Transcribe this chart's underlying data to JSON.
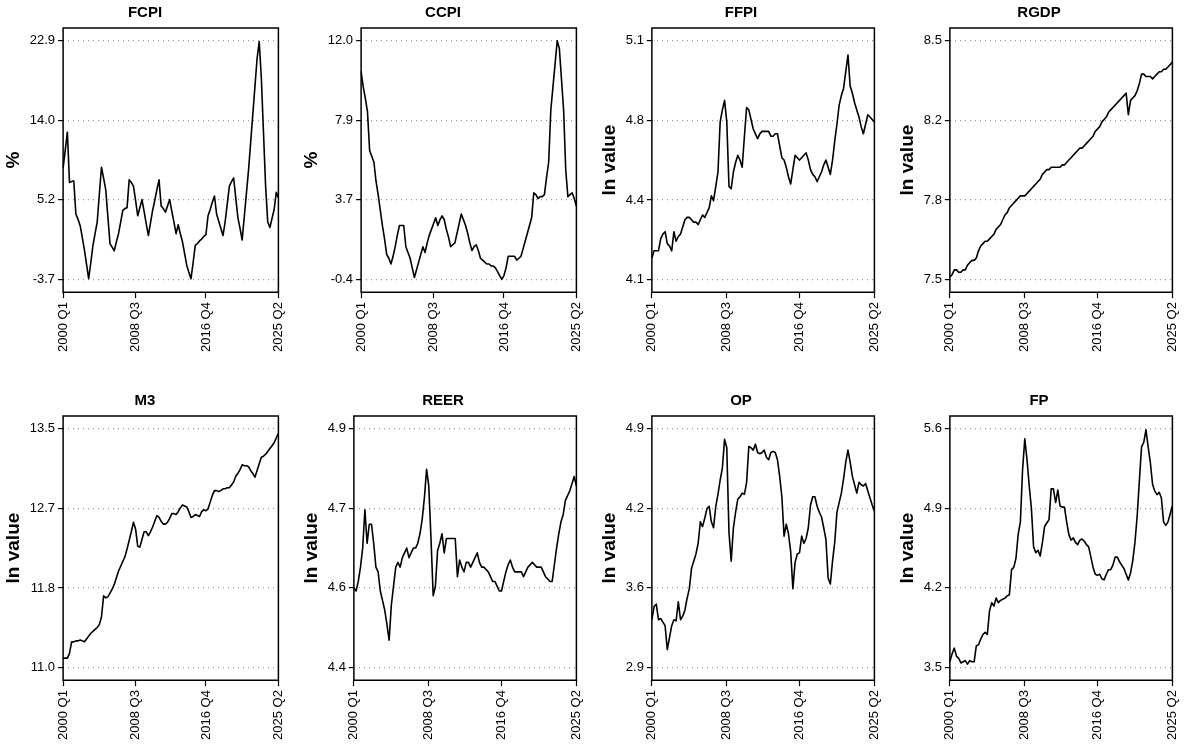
{
  "chart_data": [
    {
      "type": "line",
      "title": "FCPI",
      "ylabel": "%",
      "grid": "y",
      "ylim": [
        -5.1,
        24.3
      ],
      "categories": [
        "2000 Q1",
        null,
        null,
        null,
        null,
        null,
        null,
        null,
        null,
        null,
        null,
        null,
        null,
        null,
        null,
        null,
        null,
        null,
        null,
        null,
        null,
        null,
        null,
        null,
        null,
        null,
        null,
        null,
        null,
        null,
        null,
        null,
        null,
        null,
        "2008 Q3",
        null,
        null,
        null,
        null,
        null,
        null,
        null,
        null,
        null,
        null,
        null,
        null,
        null,
        null,
        null,
        null,
        null,
        null,
        null,
        null,
        null,
        null,
        null,
        null,
        null,
        null,
        null,
        null,
        null,
        null,
        null,
        null,
        "2016 Q4",
        null,
        null,
        null,
        null,
        null,
        null,
        null,
        null,
        null,
        null,
        null,
        null,
        null,
        null,
        null,
        null,
        null,
        null,
        null,
        null,
        null,
        null,
        null,
        null,
        null,
        null,
        null,
        null,
        null,
        null,
        null,
        null,
        null,
        "2025 Q2"
      ],
      "yticks": [
        -3.7,
        {
          "value": 5.167,
          "label": "5.2"
        },
        {
          "value": 14.033,
          "label": "14.0"
        },
        22.9
      ],
      "series": [
        {
          "color": "#000000",
          "values": [
            8.7,
            10.7,
            12.7,
            7.1,
            7.2,
            7.3,
            3.6,
            3.0,
            2.3,
            1.0,
            -0.4,
            -2.0,
            -3.6,
            -1.8,
            0.1,
            1.4,
            2.7,
            5.8,
            8.8,
            7.6,
            6.3,
            3.3,
            0.3,
            -0.1,
            -0.5,
            0.5,
            1.4,
            2.7,
            4.0,
            4.2,
            4.3,
            7.4,
            7.1,
            6.7,
            5.1,
            3.4,
            4.3,
            5.2,
            3.9,
            2.5,
            1.2,
            2.6,
            4.0,
            5.1,
            6.3,
            7.4,
            4.5,
            4.2,
            3.8,
            4.5,
            5.2,
            3.9,
            2.7,
            1.4,
            2.4,
            1.4,
            0.5,
            -0.8,
            -2.1,
            -2.9,
            -3.6,
            -1.8,
            0.1,
            0.3,
            0.6,
            0.8,
            1.1,
            1.3,
            3.4,
            4.1,
            4.9,
            5.6,
            3.6,
            2.8,
            2.0,
            1.2,
            2.7,
            4.7,
            6.7,
            7.2,
            7.6,
            5.4,
            3.2,
            2.0,
            0.7,
            3.3,
            5.9,
            8.5,
            11.6,
            14.7,
            17.8,
            20.9,
            22.8,
            18.7,
            12.7,
            6.7,
            2.7,
            2.1,
            3.1,
            4.1,
            6.0,
            5.4
          ]
        }
      ]
    },
    {
      "type": "line",
      "title": "CCPI",
      "ylabel": "%",
      "grid": "y",
      "ylim": [
        -1.06,
        12.66
      ],
      "categories": [
        "2000 Q1",
        null,
        null,
        null,
        null,
        null,
        null,
        null,
        null,
        null,
        null,
        null,
        null,
        null,
        null,
        null,
        null,
        null,
        null,
        null,
        null,
        null,
        null,
        null,
        null,
        null,
        null,
        null,
        null,
        null,
        null,
        null,
        null,
        null,
        "2008 Q3",
        null,
        null,
        null,
        null,
        null,
        null,
        null,
        null,
        null,
        null,
        null,
        null,
        null,
        null,
        null,
        null,
        null,
        null,
        null,
        null,
        null,
        null,
        null,
        null,
        null,
        null,
        null,
        null,
        null,
        null,
        null,
        null,
        "2016 Q4",
        null,
        null,
        null,
        null,
        null,
        null,
        null,
        null,
        null,
        null,
        null,
        null,
        null,
        null,
        null,
        null,
        null,
        null,
        null,
        null,
        null,
        null,
        null,
        null,
        null,
        null,
        null,
        null,
        null,
        null,
        null,
        null,
        null,
        "2025 Q2"
      ],
      "yticks": [
        -0.4,
        {
          "value": 3.733,
          "label": "3.7"
        },
        {
          "value": 7.867,
          "label": "7.9"
        },
        {
          "value": 12,
          "label": "12.0"
        }
      ],
      "series": [
        {
          "color": "#000000",
          "values": [
            10.4,
            9.6,
            9.0,
            8.3,
            6.3,
            6.0,
            5.7,
            4.7,
            4.0,
            3.2,
            2.4,
            1.7,
            0.9,
            0.7,
            0.4,
            0.8,
            1.3,
            1.9,
            2.4,
            2.4,
            2.4,
            1.3,
            1.0,
            0.7,
            0.2,
            -0.3,
            0.1,
            0.5,
            0.9,
            1.3,
            1.0,
            1.5,
            1.9,
            2.2,
            2.5,
            2.8,
            2.4,
            2.7,
            2.9,
            2.7,
            2.2,
            1.8,
            1.3,
            1.4,
            1.5,
            2.0,
            2.5,
            3.0,
            2.7,
            2.4,
            2.0,
            1.5,
            1.1,
            1.3,
            1.4,
            1.1,
            0.7,
            0.6,
            0.5,
            0.4,
            0.4,
            0.3,
            0.3,
            0.2,
            0.0,
            -0.2,
            -0.4,
            -0.2,
            0.2,
            0.8,
            0.8,
            0.8,
            0.8,
            0.6,
            0.7,
            0.8,
            1.2,
            1.6,
            2.0,
            2.4,
            2.8,
            4.1,
            4.0,
            3.8,
            3.9,
            3.9,
            4.0,
            4.9,
            5.7,
            8.4,
            9.6,
            10.8,
            12.0,
            11.6,
            10.0,
            8.4,
            5.3,
            3.9,
            4.0,
            4.1,
            3.8,
            3.4
          ]
        }
      ]
    },
    {
      "type": "line",
      "title": "FFPI",
      "ylabel": "ln value",
      "grid": "y",
      "ylim": [
        4.047,
        5.153
      ],
      "categories": [
        "2000 Q1",
        null,
        null,
        null,
        null,
        null,
        null,
        null,
        null,
        null,
        null,
        null,
        null,
        null,
        null,
        null,
        null,
        null,
        null,
        null,
        null,
        null,
        null,
        null,
        null,
        null,
        null,
        null,
        null,
        null,
        null,
        null,
        null,
        null,
        "2008 Q3",
        null,
        null,
        null,
        null,
        null,
        null,
        null,
        null,
        null,
        null,
        null,
        null,
        null,
        null,
        null,
        null,
        null,
        null,
        null,
        null,
        null,
        null,
        null,
        null,
        null,
        null,
        null,
        null,
        null,
        null,
        null,
        null,
        "2016 Q4",
        null,
        null,
        null,
        null,
        null,
        null,
        null,
        null,
        null,
        null,
        null,
        null,
        null,
        null,
        null,
        null,
        null,
        null,
        null,
        null,
        null,
        null,
        null,
        null,
        null,
        null,
        null,
        null,
        null,
        null,
        null,
        null,
        null,
        "2025 Q2"
      ],
      "yticks": [
        4.1,
        {
          "value": 4.433,
          "label": "4.4"
        },
        {
          "value": 4.767,
          "label": "4.8"
        },
        5.1
      ],
      "series": [
        {
          "color": "#000000",
          "values": [
            4.19,
            4.22,
            4.22,
            4.22,
            4.27,
            4.29,
            4.3,
            4.25,
            4.24,
            4.22,
            4.3,
            4.26,
            4.28,
            4.29,
            4.32,
            4.35,
            4.36,
            4.36,
            4.35,
            4.34,
            4.34,
            4.33,
            4.35,
            4.37,
            4.36,
            4.38,
            4.4,
            4.45,
            4.43,
            4.49,
            4.55,
            4.76,
            4.81,
            4.85,
            4.76,
            4.49,
            4.48,
            4.55,
            4.59,
            4.62,
            4.6,
            4.57,
            4.7,
            4.82,
            4.81,
            4.77,
            4.73,
            4.71,
            4.69,
            4.71,
            4.72,
            4.72,
            4.72,
            4.72,
            4.7,
            4.7,
            4.71,
            4.71,
            4.66,
            4.61,
            4.6,
            4.57,
            4.53,
            4.5,
            4.56,
            4.62,
            4.61,
            4.6,
            4.61,
            4.62,
            4.63,
            4.6,
            4.56,
            4.54,
            4.53,
            4.51,
            4.53,
            4.55,
            4.58,
            4.6,
            4.57,
            4.54,
            4.6,
            4.68,
            4.75,
            4.83,
            4.87,
            4.9,
            4.97,
            5.04,
            4.91,
            4.88,
            4.84,
            4.81,
            4.78,
            4.74,
            4.71,
            4.75,
            4.79,
            4.78,
            4.77,
            4.76
          ]
        }
      ]
    },
    {
      "type": "line",
      "title": "RGDP",
      "ylabel": "ln value",
      "grid": "y",
      "ylim": [
        7.447,
        8.553
      ],
      "categories": [
        "2000 Q1",
        null,
        null,
        null,
        null,
        null,
        null,
        null,
        null,
        null,
        null,
        null,
        null,
        null,
        null,
        null,
        null,
        null,
        null,
        null,
        null,
        null,
        null,
        null,
        null,
        null,
        null,
        null,
        null,
        null,
        null,
        null,
        null,
        null,
        "2008 Q3",
        null,
        null,
        null,
        null,
        null,
        null,
        null,
        null,
        null,
        null,
        null,
        null,
        null,
        null,
        null,
        null,
        null,
        null,
        null,
        null,
        null,
        null,
        null,
        null,
        null,
        null,
        null,
        null,
        null,
        null,
        null,
        null,
        "2016 Q4",
        null,
        null,
        null,
        null,
        null,
        null,
        null,
        null,
        null,
        null,
        null,
        null,
        null,
        null,
        null,
        null,
        null,
        null,
        null,
        null,
        null,
        null,
        null,
        null,
        null,
        null,
        null,
        null,
        null,
        null,
        null,
        null,
        null,
        "2025 Q2"
      ],
      "yticks": [
        7.5,
        {
          "value": 7.833,
          "label": "7.8"
        },
        {
          "value": 8.167,
          "label": "8.2"
        },
        8.5
      ],
      "series": [
        {
          "color": "#000000",
          "values": [
            7.51,
            7.52,
            7.54,
            7.54,
            7.53,
            7.53,
            7.54,
            7.54,
            7.56,
            7.57,
            7.58,
            7.58,
            7.59,
            7.62,
            7.64,
            7.65,
            7.66,
            7.66,
            7.67,
            7.68,
            7.69,
            7.71,
            7.72,
            7.73,
            7.75,
            7.77,
            7.78,
            7.8,
            7.81,
            7.82,
            7.83,
            7.84,
            7.85,
            7.85,
            7.85,
            7.86,
            7.87,
            7.88,
            7.89,
            7.9,
            7.91,
            7.92,
            7.94,
            7.95,
            7.96,
            7.96,
            7.97,
            7.97,
            7.97,
            7.97,
            7.97,
            7.98,
            7.98,
            7.99,
            8.0,
            8.01,
            8.02,
            8.03,
            8.04,
            8.05,
            8.05,
            8.06,
            8.07,
            8.08,
            8.09,
            8.1,
            8.12,
            8.13,
            8.14,
            8.16,
            8.17,
            8.18,
            8.2,
            8.21,
            8.22,
            8.23,
            8.24,
            8.25,
            8.26,
            8.27,
            8.28,
            8.19,
            8.25,
            8.26,
            8.27,
            8.29,
            8.32,
            8.36,
            8.36,
            8.35,
            8.35,
            8.35,
            8.34,
            8.35,
            8.36,
            8.37,
            8.37,
            8.38,
            8.38,
            8.39,
            8.4,
            8.41
          ]
        }
      ]
    },
    {
      "type": "line",
      "title": "M3",
      "ylabel": "ln value",
      "grid": "y",
      "ylim": [
        10.87,
        13.63
      ],
      "categories": [
        "2000 Q1",
        null,
        null,
        null,
        null,
        null,
        null,
        null,
        null,
        null,
        null,
        null,
        null,
        null,
        null,
        null,
        null,
        null,
        null,
        null,
        null,
        null,
        null,
        null,
        null,
        null,
        null,
        null,
        null,
        null,
        null,
        null,
        null,
        null,
        "2008 Q3",
        null,
        null,
        null,
        null,
        null,
        null,
        null,
        null,
        null,
        null,
        null,
        null,
        null,
        null,
        null,
        null,
        null,
        null,
        null,
        null,
        null,
        null,
        null,
        null,
        null,
        null,
        null,
        null,
        null,
        null,
        null,
        null,
        "2016 Q4",
        null,
        null,
        null,
        null,
        null,
        null,
        null,
        null,
        null,
        null,
        null,
        null,
        null,
        null,
        null,
        null,
        null,
        null,
        null,
        null,
        null,
        null,
        null,
        null,
        null,
        null,
        null,
        null,
        null,
        null,
        null,
        null,
        null,
        "2025 Q2"
      ],
      "yticks": [
        {
          "value": 11,
          "label": "11.0"
        },
        {
          "value": 11.833,
          "label": "11.8"
        },
        {
          "value": 12.667,
          "label": "12.7"
        },
        13.5
      ],
      "series": [
        {
          "color": "#000000",
          "values": [
            11.1,
            11.1,
            11.1,
            11.15,
            11.27,
            11.27,
            11.28,
            11.28,
            11.29,
            11.28,
            11.27,
            11.3,
            11.33,
            11.36,
            11.38,
            11.4,
            11.42,
            11.45,
            11.53,
            11.75,
            11.73,
            11.74,
            11.78,
            11.82,
            11.87,
            11.94,
            12.01,
            12.06,
            12.11,
            12.16,
            12.24,
            12.33,
            12.42,
            12.52,
            12.45,
            12.27,
            12.26,
            12.34,
            12.42,
            12.42,
            12.38,
            12.42,
            12.47,
            12.53,
            12.59,
            12.57,
            12.53,
            12.5,
            12.5,
            12.52,
            12.56,
            12.61,
            12.61,
            12.6,
            12.63,
            12.67,
            12.7,
            12.69,
            12.68,
            12.63,
            12.57,
            12.58,
            12.6,
            12.59,
            12.58,
            12.63,
            12.65,
            12.64,
            12.66,
            12.73,
            12.8,
            12.85,
            12.85,
            12.84,
            12.85,
            12.87,
            12.87,
            12.88,
            12.88,
            12.91,
            12.94,
            13.0,
            13.03,
            13.07,
            13.12,
            13.11,
            13.11,
            13.1,
            13.06,
            13.03,
            12.99,
            13.06,
            13.13,
            13.2,
            13.21,
            13.23,
            13.26,
            13.29,
            13.32,
            13.35,
            13.4,
            13.45
          ]
        }
      ]
    },
    {
      "type": "line",
      "title": "REER",
      "ylabel": "ln value",
      "grid": "y",
      "ylim": [
        4.373,
        4.927
      ],
      "categories": [
        "2000 Q1",
        null,
        null,
        null,
        null,
        null,
        null,
        null,
        null,
        null,
        null,
        null,
        null,
        null,
        null,
        null,
        null,
        null,
        null,
        null,
        null,
        null,
        null,
        null,
        null,
        null,
        null,
        null,
        null,
        null,
        null,
        null,
        null,
        null,
        "2008 Q3",
        null,
        null,
        null,
        null,
        null,
        null,
        null,
        null,
        null,
        null,
        null,
        null,
        null,
        null,
        null,
        null,
        null,
        null,
        null,
        null,
        null,
        null,
        null,
        null,
        null,
        null,
        null,
        null,
        null,
        null,
        null,
        null,
        "2016 Q4",
        null,
        null,
        null,
        null,
        null,
        null,
        null,
        null,
        null,
        null,
        null,
        null,
        null,
        null,
        null,
        null,
        null,
        null,
        null,
        null,
        null,
        null,
        null,
        null,
        null,
        null,
        null,
        null,
        null,
        null,
        null,
        null,
        null,
        "2025 Q2"
      ],
      "yticks": [
        4.4,
        {
          "value": 4.567,
          "label": "4.6"
        },
        {
          "value": 4.733,
          "label": "4.7"
        },
        4.9
      ],
      "series": [
        {
          "color": "#000000",
          "values": [
            4.567,
            4.56,
            4.58,
            4.61,
            4.65,
            4.73,
            4.66,
            4.7,
            4.7,
            4.66,
            4.61,
            4.6,
            4.56,
            4.54,
            4.52,
            4.49,
            4.457,
            4.53,
            4.57,
            4.61,
            4.62,
            4.61,
            4.63,
            4.64,
            4.65,
            4.63,
            4.64,
            4.65,
            4.65,
            4.66,
            4.68,
            4.71,
            4.755,
            4.815,
            4.78,
            4.67,
            4.55,
            4.57,
            4.645,
            4.66,
            4.68,
            4.64,
            4.67,
            4.67,
            4.67,
            4.67,
            4.67,
            4.59,
            4.625,
            4.61,
            4.6,
            4.62,
            4.62,
            4.61,
            4.62,
            4.63,
            4.64,
            4.62,
            4.61,
            4.61,
            4.605,
            4.6,
            4.59,
            4.58,
            4.58,
            4.57,
            4.56,
            4.56,
            4.58,
            4.6,
            4.615,
            4.625,
            4.61,
            4.6,
            4.6,
            4.6,
            4.6,
            4.59,
            4.6,
            4.61,
            4.615,
            4.62,
            4.615,
            4.61,
            4.61,
            4.61,
            4.6,
            4.59,
            4.585,
            4.58,
            4.58,
            4.615,
            4.65,
            4.68,
            4.705,
            4.72,
            4.75,
            4.76,
            4.77,
            4.785,
            4.8,
            4.78
          ]
        }
      ]
    },
    {
      "type": "line",
      "title": "OP",
      "ylabel": "ln value",
      "grid": "y",
      "ylim": [
        2.794,
        5.006
      ],
      "categories": [
        "2000 Q1",
        null,
        null,
        null,
        null,
        null,
        null,
        null,
        null,
        null,
        null,
        null,
        null,
        null,
        null,
        null,
        null,
        null,
        null,
        null,
        null,
        null,
        null,
        null,
        null,
        null,
        null,
        null,
        null,
        null,
        null,
        null,
        null,
        null,
        "2008 Q3",
        null,
        null,
        null,
        null,
        null,
        null,
        null,
        null,
        null,
        null,
        null,
        null,
        null,
        null,
        null,
        null,
        null,
        null,
        null,
        null,
        null,
        null,
        null,
        null,
        null,
        null,
        null,
        null,
        null,
        null,
        null,
        null,
        "2016 Q4",
        null,
        null,
        null,
        null,
        null,
        null,
        null,
        null,
        null,
        null,
        null,
        null,
        null,
        null,
        null,
        null,
        null,
        null,
        null,
        null,
        null,
        null,
        null,
        null,
        null,
        null,
        null,
        null,
        null,
        null,
        null,
        null,
        null,
        "2025 Q2"
      ],
      "yticks": [
        2.9,
        {
          "value": 3.567,
          "label": "3.6"
        },
        {
          "value": 4.233,
          "label": "4.2"
        },
        4.9
      ],
      "series": [
        {
          "color": "#000000",
          "values": [
            3.3,
            3.41,
            3.43,
            3.3,
            3.31,
            3.28,
            3.25,
            3.05,
            3.15,
            3.25,
            3.3,
            3.29,
            3.45,
            3.3,
            3.33,
            3.38,
            3.48,
            3.56,
            3.73,
            3.79,
            3.85,
            3.94,
            4.12,
            4.08,
            4.15,
            4.23,
            4.25,
            4.12,
            4.07,
            4.25,
            4.35,
            4.47,
            4.57,
            4.81,
            4.74,
            4.03,
            3.79,
            4.07,
            4.2,
            4.31,
            4.33,
            4.36,
            4.35,
            4.45,
            4.75,
            4.74,
            4.72,
            4.77,
            4.7,
            4.69,
            4.7,
            4.72,
            4.66,
            4.64,
            4.7,
            4.71,
            4.7,
            4.64,
            4.5,
            4.33,
            4.0,
            4.1,
            4.02,
            3.87,
            3.56,
            3.78,
            3.85,
            3.86,
            4.0,
            3.94,
            3.98,
            4.07,
            4.26,
            4.33,
            4.33,
            4.25,
            4.2,
            4.16,
            4.07,
            3.97,
            3.65,
            3.6,
            3.79,
            3.95,
            4.2,
            4.28,
            4.36,
            4.48,
            4.62,
            4.72,
            4.62,
            4.5,
            4.43,
            4.36,
            4.45,
            4.43,
            4.42,
            4.44,
            4.38,
            4.32,
            4.26,
            4.21
          ]
        }
      ]
    },
    {
      "type": "line",
      "title": "FP",
      "ylabel": "ln value",
      "grid": "y",
      "ylim": [
        3.389,
        5.711
      ],
      "categories": [
        "2000 Q1",
        null,
        null,
        null,
        null,
        null,
        null,
        null,
        null,
        null,
        null,
        null,
        null,
        null,
        null,
        null,
        null,
        null,
        null,
        null,
        null,
        null,
        null,
        null,
        null,
        null,
        null,
        null,
        null,
        null,
        null,
        null,
        null,
        null,
        "2008 Q3",
        null,
        null,
        null,
        null,
        null,
        null,
        null,
        null,
        null,
        null,
        null,
        null,
        null,
        null,
        null,
        null,
        null,
        null,
        null,
        null,
        null,
        null,
        null,
        null,
        null,
        null,
        null,
        null,
        null,
        null,
        null,
        null,
        "2016 Q4",
        null,
        null,
        null,
        null,
        null,
        null,
        null,
        null,
        null,
        null,
        null,
        null,
        null,
        null,
        null,
        null,
        null,
        null,
        null,
        null,
        null,
        null,
        null,
        null,
        null,
        null,
        null,
        null,
        null,
        null,
        null,
        null,
        null,
        "2025 Q2"
      ],
      "yticks": [
        3.5,
        4.2,
        4.9,
        5.6
      ],
      "series": [
        {
          "color": "#000000",
          "values": [
            3.55,
            3.62,
            3.67,
            3.6,
            3.58,
            3.54,
            3.55,
            3.56,
            3.53,
            3.56,
            3.55,
            3.55,
            3.69,
            3.7,
            3.75,
            3.79,
            3.81,
            3.79,
            4.0,
            4.07,
            4.04,
            4.11,
            4.07,
            4.09,
            4.1,
            4.11,
            4.13,
            4.14,
            4.36,
            4.38,
            4.46,
            4.67,
            4.78,
            5.24,
            5.51,
            5.33,
            5.1,
            4.9,
            4.56,
            4.51,
            4.53,
            4.48,
            4.6,
            4.74,
            4.77,
            4.8,
            5.07,
            5.07,
            4.95,
            5.06,
            4.92,
            4.91,
            4.91,
            4.78,
            4.67,
            4.62,
            4.64,
            4.6,
            4.58,
            4.62,
            4.63,
            4.61,
            4.58,
            4.56,
            4.47,
            4.38,
            4.32,
            4.31,
            4.32,
            4.28,
            4.27,
            4.32,
            4.36,
            4.36,
            4.4,
            4.47,
            4.47,
            4.43,
            4.4,
            4.37,
            4.32,
            4.27,
            4.33,
            4.44,
            4.6,
            4.83,
            5.14,
            5.44,
            5.48,
            5.59,
            5.44,
            5.3,
            5.11,
            5.05,
            5.02,
            5.04,
            4.99,
            4.78,
            4.75,
            4.78,
            4.85,
            4.92
          ]
        }
      ]
    }
  ]
}
